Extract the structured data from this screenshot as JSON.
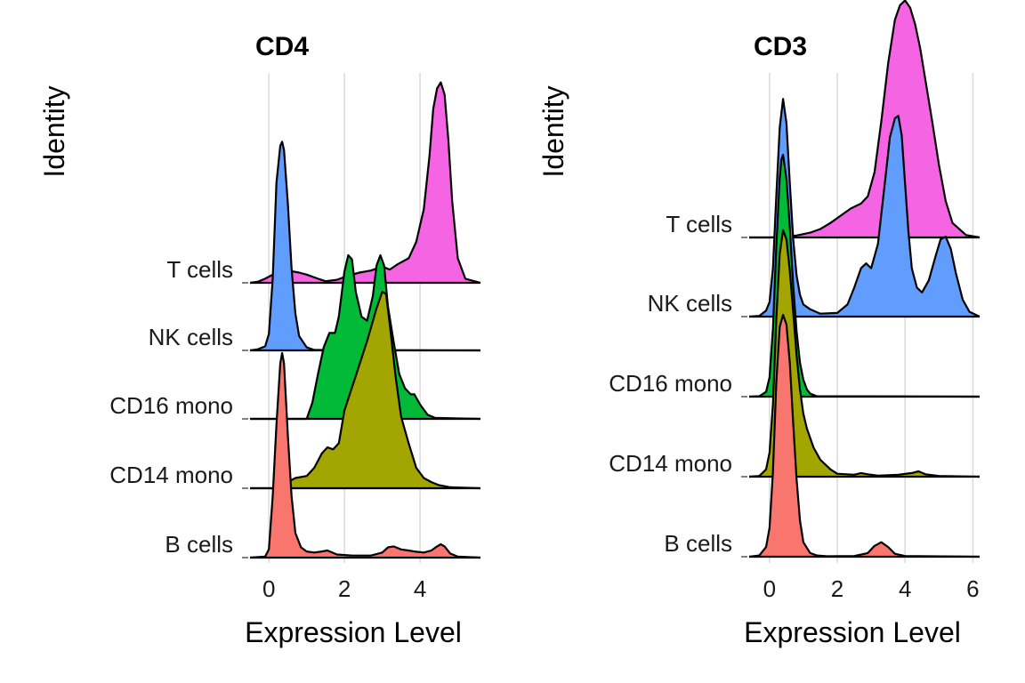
{
  "chart_data": [
    {
      "type": "ridgeline",
      "title": "CD4",
      "xlabel": "Expression Level",
      "ylabel": "Identity",
      "xlim": [
        -0.5,
        5.6
      ],
      "x_ticks": [
        0,
        2,
        4
      ],
      "grid": true,
      "categories": [
        "B cells",
        "CD14 mono",
        "CD16 mono",
        "NK cells",
        "T cells"
      ],
      "series": [
        {
          "category": "B cells",
          "color": "#F8766D",
          "x": [
            -0.5,
            -0.1,
            0.0,
            0.1,
            0.2,
            0.3,
            0.35,
            0.4,
            0.5,
            0.6,
            0.7,
            0.85,
            1.0,
            1.2,
            1.4,
            1.55,
            1.8,
            2.2,
            2.7,
            3.0,
            3.15,
            3.3,
            3.5,
            3.7,
            3.85,
            4.1,
            4.3,
            4.45,
            4.55,
            4.65,
            4.8,
            5.0,
            5.6
          ],
          "y": [
            0,
            0.005,
            0.04,
            0.3,
            0.65,
            0.95,
            1.0,
            0.95,
            0.6,
            0.3,
            0.12,
            0.05,
            0.03,
            0.025,
            0.03,
            0.035,
            0.015,
            0.01,
            0.01,
            0.025,
            0.05,
            0.055,
            0.04,
            0.035,
            0.03,
            0.025,
            0.035,
            0.055,
            0.065,
            0.055,
            0.02,
            0.005,
            0
          ]
        },
        {
          "category": "CD14 mono",
          "color": "#A3A500",
          "x": [
            -0.5,
            0.1,
            0.3,
            0.5,
            0.7,
            1.0,
            1.2,
            1.4,
            1.55,
            1.7,
            1.85,
            2.0,
            2.3,
            2.6,
            2.85,
            3.0,
            3.1,
            3.2,
            3.35,
            3.5,
            3.7,
            3.9,
            4.1,
            4.3,
            4.5,
            4.8,
            5.6
          ],
          "y": [
            0,
            0,
            0.005,
            0.03,
            0.05,
            0.06,
            0.1,
            0.17,
            0.2,
            0.19,
            0.22,
            0.38,
            0.55,
            0.72,
            0.88,
            0.96,
            0.95,
            0.8,
            0.55,
            0.35,
            0.22,
            0.1,
            0.05,
            0.03,
            0.015,
            0.005,
            0
          ]
        },
        {
          "category": "CD16 mono",
          "color": "#00BA38",
          "x": [
            -0.5,
            1.0,
            1.15,
            1.3,
            1.45,
            1.6,
            1.75,
            1.85,
            2.0,
            2.1,
            2.2,
            2.3,
            2.45,
            2.6,
            2.75,
            2.85,
            2.95,
            3.05,
            3.15,
            3.3,
            3.45,
            3.6,
            3.75,
            3.85,
            4.0,
            4.2,
            4.4,
            5.6
          ],
          "y": [
            0,
            0,
            0.08,
            0.22,
            0.35,
            0.42,
            0.42,
            0.5,
            0.72,
            0.8,
            0.78,
            0.62,
            0.5,
            0.48,
            0.6,
            0.75,
            0.8,
            0.75,
            0.55,
            0.38,
            0.22,
            0.15,
            0.12,
            0.12,
            0.07,
            0.02,
            0.005,
            0
          ]
        },
        {
          "category": "NK cells",
          "color": "#619CFF",
          "x": [
            -0.5,
            -0.3,
            -0.1,
            0.0,
            0.1,
            0.2,
            0.3,
            0.35,
            0.4,
            0.5,
            0.6,
            0.7,
            0.8,
            1.0,
            1.2,
            5.6
          ],
          "y": [
            0,
            0.005,
            0.02,
            0.08,
            0.35,
            0.82,
            1.0,
            1.02,
            0.98,
            0.72,
            0.4,
            0.18,
            0.07,
            0.015,
            0.002,
            0
          ]
        },
        {
          "category": "T cells",
          "color": "#F564E3",
          "x": [
            -0.5,
            -0.3,
            -0.1,
            0.1,
            0.3,
            0.5,
            0.8,
            1.0,
            1.3,
            1.5,
            1.8,
            2.1,
            2.4,
            2.7,
            3.0,
            3.2,
            3.4,
            3.7,
            3.9,
            4.1,
            4.25,
            4.35,
            4.45,
            4.55,
            4.65,
            4.75,
            4.85,
            5.0,
            5.2,
            5.6
          ],
          "y": [
            0,
            0.005,
            0.02,
            0.04,
            0.05,
            0.06,
            0.05,
            0.04,
            0.02,
            0.008,
            0.015,
            0.035,
            0.05,
            0.06,
            0.08,
            0.065,
            0.09,
            0.12,
            0.2,
            0.36,
            0.62,
            0.85,
            0.95,
            0.98,
            0.92,
            0.7,
            0.4,
            0.12,
            0.02,
            0
          ]
        }
      ]
    },
    {
      "type": "ridgeline",
      "title": "CD3",
      "xlabel": "Expression Level",
      "ylabel": "Identity",
      "xlim": [
        -0.6,
        6.2
      ],
      "x_ticks": [
        0,
        2,
        4,
        6
      ],
      "grid": true,
      "categories": [
        "B cells",
        "CD14 mono",
        "CD16 mono",
        "NK cells",
        "T cells"
      ],
      "series": [
        {
          "category": "B cells",
          "color": "#F8766D",
          "x": [
            -0.6,
            -0.3,
            -0.1,
            0.0,
            0.1,
            0.2,
            0.3,
            0.4,
            0.5,
            0.6,
            0.7,
            0.8,
            0.9,
            1.0,
            1.2,
            1.4,
            1.7,
            2.5,
            2.9,
            3.1,
            3.3,
            3.5,
            3.7,
            4.0,
            6.2
          ],
          "y": [
            0,
            0.005,
            0.04,
            0.12,
            0.35,
            0.72,
            0.95,
            1.0,
            0.96,
            0.8,
            0.55,
            0.32,
            0.15,
            0.06,
            0.015,
            0.005,
            0.002,
            0.003,
            0.015,
            0.045,
            0.06,
            0.04,
            0.012,
            0.003,
            0
          ]
        },
        {
          "category": "CD14 mono",
          "color": "#A3A500",
          "x": [
            -0.6,
            -0.3,
            -0.1,
            0.0,
            0.1,
            0.2,
            0.3,
            0.4,
            0.5,
            0.6,
            0.7,
            0.8,
            0.9,
            1.0,
            1.1,
            1.3,
            1.5,
            1.8,
            2.0,
            2.5,
            2.7,
            2.9,
            3.2,
            3.8,
            4.2,
            4.4,
            4.6,
            5.0,
            6.2
          ],
          "y": [
            0,
            0.003,
            0.03,
            0.1,
            0.3,
            0.65,
            0.92,
            1.02,
            0.98,
            0.85,
            0.68,
            0.5,
            0.36,
            0.26,
            0.2,
            0.12,
            0.07,
            0.03,
            0.012,
            0.008,
            0.015,
            0.01,
            0.004,
            0.008,
            0.015,
            0.022,
            0.01,
            0.003,
            0
          ]
        },
        {
          "category": "CD16 mono",
          "color": "#00BA38",
          "x": [
            -0.6,
            -0.3,
            -0.1,
            0.0,
            0.1,
            0.2,
            0.3,
            0.35,
            0.4,
            0.5,
            0.6,
            0.7,
            0.8,
            0.9,
            1.0,
            1.1,
            1.2,
            1.4,
            6.2
          ],
          "y": [
            0,
            0.002,
            0.02,
            0.08,
            0.28,
            0.62,
            0.9,
            0.98,
            1.0,
            0.9,
            0.7,
            0.46,
            0.27,
            0.14,
            0.07,
            0.03,
            0.012,
            0.002,
            0
          ]
        },
        {
          "category": "NK cells",
          "color": "#619CFF",
          "x": [
            -0.6,
            -0.3,
            -0.1,
            0.0,
            0.1,
            0.2,
            0.3,
            0.4,
            0.5,
            0.6,
            0.7,
            0.8,
            0.9,
            1.0,
            1.2,
            1.5,
            2.0,
            2.3,
            2.5,
            2.7,
            2.85,
            3.0,
            3.2,
            3.4,
            3.55,
            3.7,
            3.8,
            3.9,
            4.0,
            4.1,
            4.2,
            4.35,
            4.5,
            4.7,
            4.9,
            5.05,
            5.2,
            5.35,
            5.5,
            5.7,
            5.9,
            6.2
          ],
          "y": [
            0,
            0.003,
            0.025,
            0.06,
            0.2,
            0.5,
            0.78,
            0.9,
            0.8,
            0.55,
            0.32,
            0.17,
            0.09,
            0.05,
            0.03,
            0.012,
            0.015,
            0.05,
            0.12,
            0.2,
            0.22,
            0.2,
            0.3,
            0.55,
            0.74,
            0.82,
            0.83,
            0.75,
            0.55,
            0.35,
            0.2,
            0.12,
            0.1,
            0.15,
            0.25,
            0.32,
            0.33,
            0.28,
            0.18,
            0.07,
            0.02,
            0
          ]
        },
        {
          "category": "T cells",
          "color": "#F564E3",
          "x": [
            -0.6,
            0.0,
            0.4,
            0.8,
            1.2,
            1.5,
            1.8,
            2.1,
            2.4,
            2.7,
            2.9,
            3.1,
            3.3,
            3.5,
            3.7,
            3.85,
            4.0,
            4.15,
            4.3,
            4.45,
            4.6,
            4.8,
            5.0,
            5.2,
            5.4,
            5.8,
            6.2
          ],
          "y": [
            0,
            0,
            0.002,
            0.008,
            0.02,
            0.035,
            0.06,
            0.09,
            0.12,
            0.14,
            0.17,
            0.27,
            0.48,
            0.72,
            0.9,
            0.96,
            0.98,
            0.95,
            0.88,
            0.78,
            0.65,
            0.48,
            0.3,
            0.15,
            0.06,
            0.01,
            0
          ]
        }
      ]
    }
  ]
}
